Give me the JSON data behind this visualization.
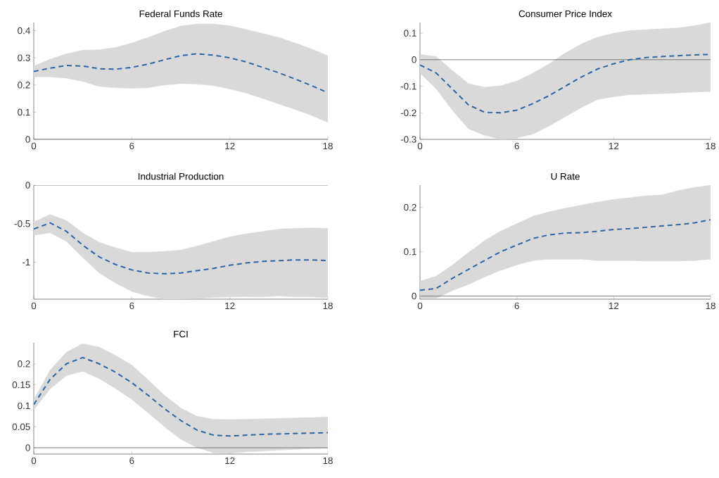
{
  "chart_data": [
    {
      "type": "line",
      "title": "Federal Funds Rate",
      "x": [
        0,
        1,
        2,
        3,
        4,
        5,
        6,
        7,
        8,
        9,
        10,
        11,
        12,
        13,
        14,
        15,
        16,
        17,
        18
      ],
      "xlim": [
        0,
        18
      ],
      "xticks": [
        0,
        6,
        12,
        18
      ],
      "ylim": [
        0,
        0.43
      ],
      "yticks": [
        0,
        0.1,
        0.2,
        0.3,
        0.4
      ],
      "line_style": "dashed",
      "ref_lines": [
        {
          "axis": "y",
          "value": 0,
          "color": "#6e6e6e"
        }
      ],
      "series": [
        {
          "color": "#2e64a0",
          "values": [
            0.25,
            0.262,
            0.272,
            0.27,
            0.26,
            0.258,
            0.265,
            0.277,
            0.293,
            0.308,
            0.315,
            0.31,
            0.3,
            0.285,
            0.265,
            0.245,
            0.222,
            0.198,
            0.172
          ],
          "lower": [
            0.23,
            0.23,
            0.225,
            0.213,
            0.195,
            0.19,
            0.188,
            0.19,
            0.2,
            0.205,
            0.203,
            0.198,
            0.185,
            0.17,
            0.151,
            0.13,
            0.11,
            0.088,
            0.062
          ],
          "upper": [
            0.27,
            0.295,
            0.315,
            0.328,
            0.33,
            0.338,
            0.355,
            0.375,
            0.398,
            0.417,
            0.425,
            0.425,
            0.418,
            0.405,
            0.39,
            0.375,
            0.355,
            0.333,
            0.308
          ]
        }
      ]
    },
    {
      "type": "line",
      "title": "Consumer Price Index",
      "x": [
        0,
        1,
        2,
        3,
        4,
        5,
        6,
        7,
        8,
        9,
        10,
        11,
        12,
        13,
        14,
        15,
        16,
        17,
        18
      ],
      "xlim": [
        0,
        18
      ],
      "xticks": [
        0,
        6,
        12,
        18
      ],
      "ylim": [
        -0.3,
        0.14
      ],
      "yticks": [
        -0.3,
        -0.2,
        -0.1,
        0,
        0.1
      ],
      "line_style": "dashed",
      "ref_lines": [
        {
          "axis": "y",
          "value": 0,
          "color": "#6e6e6e"
        }
      ],
      "series": [
        {
          "color": "#2e64a0",
          "values": [
            -0.02,
            -0.05,
            -0.11,
            -0.17,
            -0.198,
            -0.2,
            -0.19,
            -0.165,
            -0.135,
            -0.1,
            -0.065,
            -0.035,
            -0.015,
            0.0,
            0.008,
            0.012,
            0.015,
            0.018,
            0.02
          ],
          "lower": [
            -0.05,
            -0.11,
            -0.19,
            -0.26,
            -0.285,
            -0.3,
            -0.295,
            -0.28,
            -0.25,
            -0.215,
            -0.18,
            -0.15,
            -0.14,
            -0.132,
            -0.13,
            -0.128,
            -0.125,
            -0.122,
            -0.12
          ],
          "upper": [
            0.02,
            0.012,
            -0.04,
            -0.09,
            -0.103,
            -0.098,
            -0.08,
            -0.05,
            -0.015,
            0.025,
            0.06,
            0.085,
            0.1,
            0.11,
            0.113,
            0.117,
            0.12,
            0.128,
            0.14
          ]
        }
      ]
    },
    {
      "type": "line",
      "title": "Industrial Production",
      "x": [
        0,
        1,
        2,
        3,
        4,
        5,
        6,
        7,
        8,
        9,
        10,
        11,
        12,
        13,
        14,
        15,
        16,
        17,
        18
      ],
      "xlim": [
        0,
        18
      ],
      "xticks": [
        0,
        6,
        12,
        18
      ],
      "ylim": [
        -1.48,
        0
      ],
      "yticks": [
        -1,
        -0.5,
        0
      ],
      "line_style": "dashed",
      "ref_lines": [
        {
          "axis": "y",
          "value": 0,
          "color": "#6e6e6e"
        }
      ],
      "series": [
        {
          "color": "#2e64a0",
          "values": [
            -0.57,
            -0.49,
            -0.6,
            -0.78,
            -0.93,
            -1.03,
            -1.1,
            -1.14,
            -1.15,
            -1.14,
            -1.11,
            -1.08,
            -1.04,
            -1.01,
            -0.99,
            -0.98,
            -0.97,
            -0.97,
            -0.98
          ],
          "lower": [
            -0.65,
            -0.62,
            -0.73,
            -0.94,
            -1.14,
            -1.27,
            -1.38,
            -1.44,
            -1.48,
            -1.48,
            -1.47,
            -1.458,
            -1.45,
            -1.448,
            -1.45,
            -1.44,
            -1.45,
            -1.45,
            -1.46
          ],
          "upper": [
            -0.48,
            -0.38,
            -0.46,
            -0.62,
            -0.74,
            -0.81,
            -0.87,
            -0.87,
            -0.86,
            -0.84,
            -0.79,
            -0.73,
            -0.67,
            -0.63,
            -0.6,
            -0.57,
            -0.56,
            -0.555,
            -0.56
          ]
        }
      ]
    },
    {
      "type": "line",
      "title": "U Rate",
      "x": [
        0,
        1,
        2,
        3,
        4,
        5,
        6,
        7,
        8,
        9,
        10,
        11,
        12,
        13,
        14,
        15,
        16,
        17,
        18
      ],
      "xlim": [
        0,
        18
      ],
      "xticks": [
        0,
        6,
        12,
        18
      ],
      "ylim": [
        -0.007,
        0.25
      ],
      "yticks": [
        0,
        0.1,
        0.2
      ],
      "line_style": "dashed",
      "ref_lines": [
        {
          "axis": "y",
          "value": 0,
          "color": "#6e6e6e"
        }
      ],
      "series": [
        {
          "color": "#2e64a0",
          "values": [
            0.013,
            0.017,
            0.04,
            0.06,
            0.08,
            0.1,
            0.115,
            0.13,
            0.138,
            0.142,
            0.143,
            0.146,
            0.15,
            0.152,
            0.155,
            0.158,
            0.161,
            0.165,
            0.172
          ],
          "lower": [
            -0.005,
            -0.005,
            0.012,
            0.026,
            0.043,
            0.058,
            0.07,
            0.08,
            0.083,
            0.083,
            0.083,
            0.08,
            0.08,
            0.08,
            0.079,
            0.079,
            0.079,
            0.08,
            0.083
          ],
          "upper": [
            0.034,
            0.045,
            0.07,
            0.098,
            0.125,
            0.147,
            0.163,
            0.18,
            0.19,
            0.198,
            0.205,
            0.212,
            0.218,
            0.222,
            0.226,
            0.228,
            0.238,
            0.245,
            0.25
          ]
        }
      ]
    },
    {
      "type": "line",
      "title": "FCI",
      "x": [
        0,
        1,
        2,
        3,
        4,
        5,
        6,
        7,
        8,
        9,
        10,
        11,
        12,
        13,
        14,
        15,
        16,
        17,
        18
      ],
      "xlim": [
        0,
        18
      ],
      "xticks": [
        0,
        6,
        12,
        18
      ],
      "ylim": [
        -0.015,
        0.25
      ],
      "yticks": [
        0,
        0.05,
        0.1,
        0.15,
        0.2
      ],
      "line_style": "dashed",
      "ref_lines": [
        {
          "axis": "y",
          "value": 0,
          "color": "#6e6e6e"
        }
      ],
      "series": [
        {
          "color": "#2e64a0",
          "values": [
            0.103,
            0.163,
            0.2,
            0.215,
            0.2,
            0.18,
            0.155,
            0.125,
            0.093,
            0.065,
            0.042,
            0.03,
            0.028,
            0.03,
            0.032,
            0.033,
            0.034,
            0.035,
            0.036
          ],
          "lower": [
            0.09,
            0.14,
            0.172,
            0.182,
            0.165,
            0.141,
            0.115,
            0.083,
            0.05,
            0.02,
            0.0,
            -0.012,
            -0.013,
            -0.01,
            -0.008,
            -0.006,
            -0.004,
            -0.002,
            -0.001
          ],
          "upper": [
            0.115,
            0.185,
            0.228,
            0.248,
            0.24,
            0.22,
            0.197,
            0.162,
            0.125,
            0.095,
            0.075,
            0.068,
            0.067,
            0.068,
            0.069,
            0.07,
            0.071,
            0.072,
            0.074
          ]
        }
      ]
    }
  ]
}
